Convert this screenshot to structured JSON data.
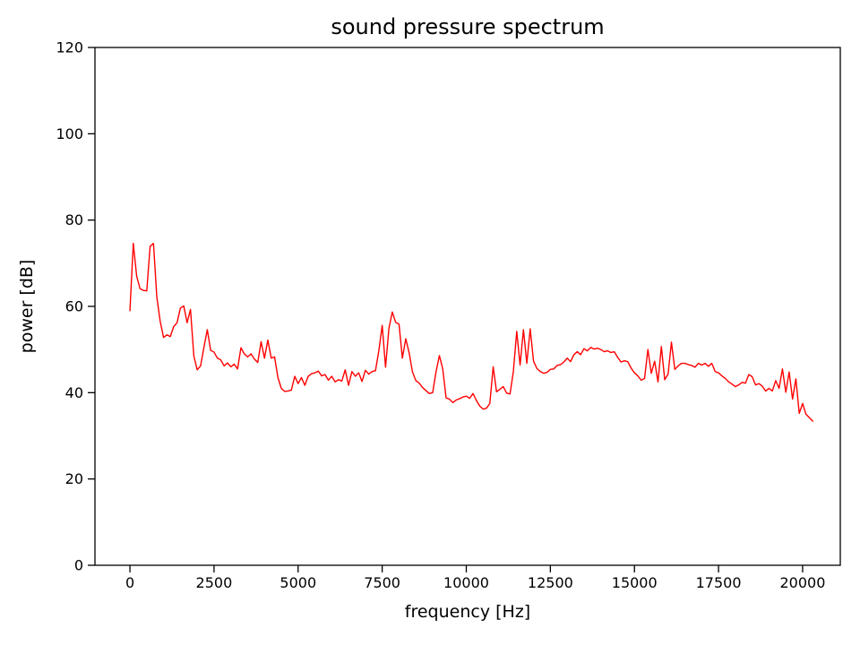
{
  "figure": {
    "background": "#ffffff",
    "text_color": "#000000"
  },
  "chart_data": {
    "type": "line",
    "title": "sound pressure spectrum",
    "xlabel": "frequency [Hz]",
    "ylabel": "power [dB]",
    "grid": false,
    "legend": "none",
    "xlim": [
      -1040,
      21120
    ],
    "ylim": [
      0,
      120
    ],
    "xticks": [
      0,
      2500,
      5000,
      7500,
      10000,
      12500,
      15000,
      17500,
      20000
    ],
    "yticks": [
      0,
      20,
      40,
      60,
      80,
      100,
      120
    ],
    "series": [
      {
        "name": "sound pressure spectrum",
        "color": "#ff0000",
        "x": [
          0,
          100,
          200,
          300,
          400,
          500,
          600,
          700,
          800,
          900,
          1000,
          1100,
          1200,
          1300,
          1400,
          1500,
          1600,
          1700,
          1800,
          1900,
          2000,
          2100,
          2200,
          2300,
          2400,
          2500,
          2600,
          2700,
          2800,
          2900,
          3000,
          3100,
          3200,
          3300,
          3400,
          3500,
          3600,
          3700,
          3800,
          3900,
          4000,
          4100,
          4200,
          4300,
          4400,
          4500,
          4600,
          4700,
          4800,
          4900,
          5000,
          5100,
          5200,
          5300,
          5400,
          5500,
          5600,
          5700,
          5800,
          5900,
          6000,
          6100,
          6200,
          6300,
          6400,
          6500,
          6600,
          6700,
          6800,
          6900,
          7000,
          7100,
          7200,
          7300,
          7400,
          7500,
          7600,
          7700,
          7800,
          7900,
          8000,
          8100,
          8200,
          8300,
          8400,
          8500,
          8600,
          8700,
          8800,
          8900,
          9000,
          9100,
          9200,
          9300,
          9400,
          9500,
          9600,
          9700,
          9800,
          9900,
          10000,
          10100,
          10200,
          10300,
          10400,
          10500,
          10600,
          10700,
          10800,
          10900,
          11000,
          11100,
          11200,
          11300,
          11400,
          11500,
          11600,
          11700,
          11800,
          11900,
          12000,
          12100,
          12200,
          12300,
          12400,
          12500,
          12600,
          12700,
          12800,
          12900,
          13000,
          13100,
          13200,
          13300,
          13400,
          13500,
          13600,
          13700,
          13800,
          13900,
          14000,
          14100,
          14200,
          14300,
          14400,
          14500,
          14600,
          14700,
          14800,
          14900,
          15000,
          15100,
          15200,
          15300,
          15400,
          15500,
          15600,
          15700,
          15800,
          15900,
          16000,
          16100,
          16200,
          16300,
          16400,
          16500,
          16600,
          16700,
          16800,
          16900,
          17000,
          17100,
          17200,
          17300,
          17400,
          17500,
          17600,
          17700,
          17800,
          17900,
          18000,
          18100,
          18200,
          18300,
          18400,
          18500,
          18600,
          18700,
          18800,
          18900,
          19000,
          19100,
          19200,
          19300,
          19400,
          19500,
          19600,
          19700,
          19800,
          19900,
          20000,
          20100,
          20200,
          20300
        ],
        "y": [
          59.0,
          74.6,
          67.0,
          64.1,
          63.7,
          63.6,
          73.9,
          74.6,
          62.1,
          56.5,
          52.8,
          53.4,
          53.0,
          55.3,
          56.2,
          59.6,
          60.1,
          56.2,
          59.3,
          48.5,
          45.3,
          46.2,
          50.5,
          54.6,
          49.8,
          49.4,
          48.0,
          47.6,
          46.2,
          46.9,
          46.0,
          46.6,
          45.5,
          50.4,
          49.0,
          48.3,
          49.0,
          47.8,
          47.0,
          51.8,
          48.0,
          52.2,
          48.0,
          48.3,
          43.5,
          41.0,
          40.3,
          40.4,
          40.6,
          43.8,
          42.1,
          43.5,
          41.7,
          43.8,
          44.4,
          44.6,
          45.0,
          43.9,
          44.2,
          42.9,
          43.8,
          42.5,
          43.0,
          42.7,
          45.3,
          41.7,
          44.9,
          43.8,
          44.6,
          42.6,
          45.2,
          44.3,
          44.9,
          45.1,
          49.7,
          55.6,
          45.9,
          54.9,
          58.7,
          56.3,
          55.9,
          48.0,
          52.5,
          49.3,
          44.8,
          42.8,
          42.2,
          41.2,
          40.5,
          39.8,
          40.0,
          44.8,
          48.6,
          45.5,
          38.8,
          38.5,
          37.7,
          38.3,
          38.6,
          39.0,
          39.2,
          38.7,
          39.8,
          38.2,
          36.9,
          36.2,
          36.4,
          37.5,
          46.0,
          40.2,
          40.8,
          41.4,
          39.9,
          39.7,
          44.9,
          54.2,
          46.4,
          54.6,
          46.8,
          54.8,
          47.3,
          45.6,
          44.9,
          44.5,
          44.7,
          45.4,
          45.5,
          46.3,
          46.5,
          47.1,
          48.0,
          47.2,
          48.8,
          49.5,
          48.8,
          50.2,
          49.7,
          50.5,
          50.1,
          50.3,
          50.0,
          49.5,
          49.7,
          49.3,
          49.5,
          48.2,
          47.1,
          47.4,
          47.2,
          45.7,
          44.6,
          43.9,
          42.9,
          43.3,
          50.0,
          44.5,
          47.3,
          42.5,
          50.7,
          43.0,
          44.3,
          51.7,
          45.4,
          46.2,
          46.8,
          46.8,
          46.5,
          46.3,
          45.9,
          46.8,
          46.4,
          46.8,
          46.1,
          46.8,
          44.9,
          44.6,
          43.9,
          43.3,
          42.5,
          42.0,
          41.4,
          41.8,
          42.4,
          42.2,
          44.2,
          43.7,
          41.8,
          42.1,
          41.5,
          40.4,
          41.0,
          40.4,
          42.8,
          41.0,
          45.5,
          40.1,
          44.8,
          38.5,
          43.2,
          35.2,
          37.5,
          35.0,
          34.2,
          33.4
        ]
      }
    ]
  }
}
